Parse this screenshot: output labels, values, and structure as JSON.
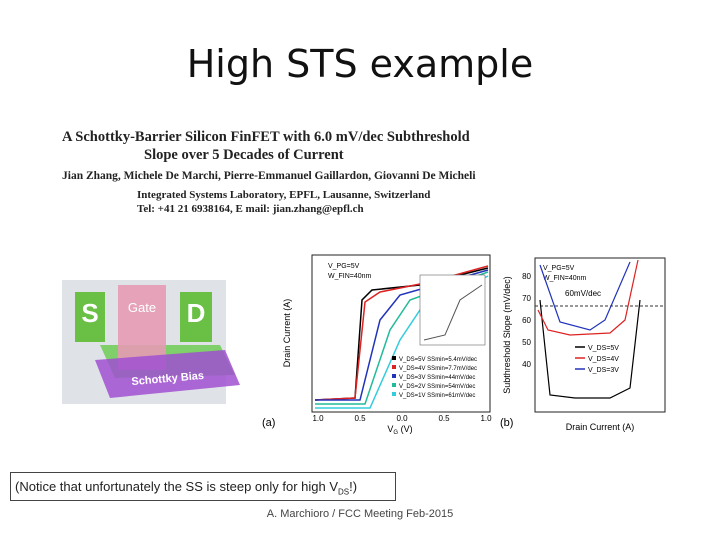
{
  "title": "High STS example",
  "paper": {
    "title_line1": "A Schottky-Barrier Silicon FinFET with 6.0 mV/dec Subthreshold",
    "title_line2": "Slope over 5 Decades of Current",
    "authors": "Jian Zhang, Michele De Marchi, Pierre-Emmanuel Gaillardon, Giovanni De Micheli",
    "affiliation": "Integrated Systems Laboratory, EPFL, Lausanne, Switzerland",
    "contact": "Tel: +41 21 6938164, E mail: jian.zhang@epfl.ch"
  },
  "device": {
    "source": "S",
    "gate": "Gate",
    "drain": "D",
    "barrier": "Schottky Bias"
  },
  "figure_a": {
    "panel": "(a)",
    "y_label": "Drain Current (A)",
    "x_label": "V",
    "x_label_sub": "G",
    "x_label_unit": " (V)",
    "x_ticks": [
      "1.0",
      "0.5",
      "0.0",
      "0.5",
      "1.0"
    ],
    "conditions": [
      "V_PG=5V",
      "W_FIN=40nm"
    ],
    "legend": [
      "V_DS=5V  SSmin=5.4mV/dec",
      "V_DS=4V  SSmin=7.7mV/dec",
      "V_DS=3V  SSmin=44mV/dec",
      "V_DS=2V  SSmin=54mV/dec",
      "V_DS=1V  SSmin=61mV/dec"
    ]
  },
  "figure_b": {
    "panel": "(b)",
    "y_label": "Subthreshold Slope (mV/dec)",
    "x_label": "Drain Current (A)",
    "y_ticks": [
      "80",
      "70",
      "60",
      "50",
      "40"
    ],
    "conditions": [
      "V_PG=5V",
      "W_FIN=40nm"
    ],
    "annotation": "60mV/dec",
    "legend": [
      "V_DS=5V",
      "V_DS=4V",
      "V_DS=3V"
    ]
  },
  "note": {
    "text": "(Notice that unfortunately the SS is steep only for high V",
    "sub": "DS",
    "end": "!)"
  },
  "footer": "A. Marchioro / FCC Meeting Feb-2015"
}
